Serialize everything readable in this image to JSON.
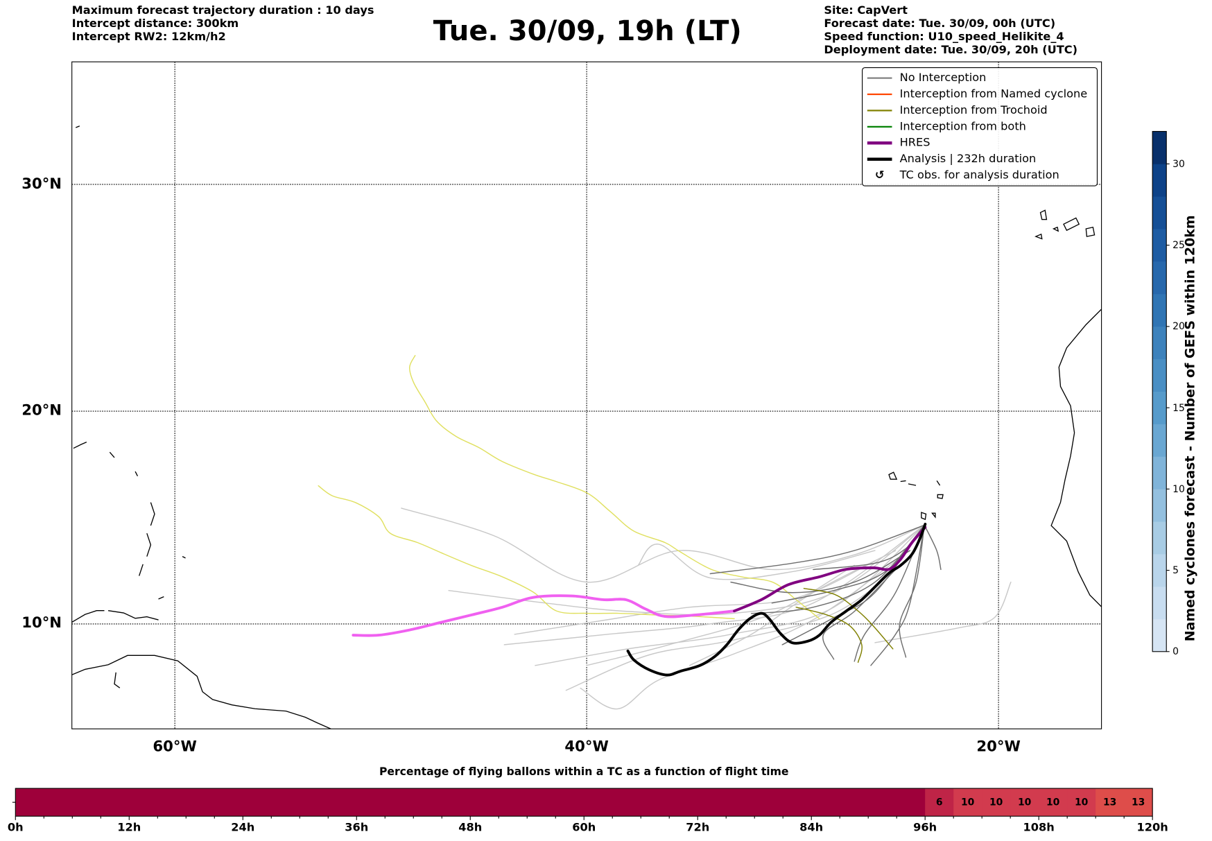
{
  "header": {
    "left": [
      "Maximum forecast trajectory duration : 10 days",
      "Intercept distance: 300km",
      "Intercept RW2: 12km/h2"
    ],
    "title": "Tue. 30/09, 19h (LT)",
    "right": [
      "Site: CapVert",
      "Forecast date: Tue. 30/09, 00h (UTC)",
      "Speed function: U10_speed_Helikite_4",
      "Deployment date: Tue. 30/09, 20h (UTC)"
    ]
  },
  "map": {
    "lon_range": [
      -65,
      -15
    ],
    "lat_range": [
      5,
      35
    ],
    "lon_ticks": [
      {
        "value": -60,
        "label": "60°W"
      },
      {
        "value": -40,
        "label": "40°W"
      },
      {
        "value": -20,
        "label": "20°W"
      }
    ],
    "lat_ticks": [
      {
        "value": 10,
        "label": "10°N"
      },
      {
        "value": 20,
        "label": "20°N"
      },
      {
        "value": 30,
        "label": "30°N"
      }
    ]
  },
  "legend": [
    {
      "label": "No Interception",
      "color": "#808080",
      "kind": "thin"
    },
    {
      "label": "Interception from Named cyclone",
      "color": "#ff4500",
      "kind": "thin"
    },
    {
      "label": "Interception from Trochoid",
      "color": "#808000",
      "kind": "thin"
    },
    {
      "label": "Interception from both",
      "color": "#008000",
      "kind": "thin"
    },
    {
      "label": "HRES",
      "color": "#800080",
      "kind": "thick"
    },
    {
      "label": "Analysis | 232h duration",
      "color": "#000000",
      "kind": "thick"
    },
    {
      "label": "TC obs. for analysis duration",
      "color": "#000000",
      "kind": "marker",
      "symbol": "↺"
    }
  ],
  "colors": {
    "light_gray": "#c8c8c8",
    "dark_gray": "#6e6e6e",
    "yellow": "#e0e060",
    "olive": "#808000",
    "hres": "#800080",
    "hres_pink": "#f060f0",
    "analysis": "#000000"
  },
  "chart_data": {
    "type": "line",
    "trajectories": {
      "analysis": [
        [
          -38.0,
          8.7
        ],
        [
          -37.7,
          8.26
        ],
        [
          -36.96,
          7.79
        ],
        [
          -36.1,
          7.54
        ],
        [
          -35.46,
          7.72
        ],
        [
          -34.5,
          8.0
        ],
        [
          -33.77,
          8.44
        ],
        [
          -33.2,
          8.99
        ],
        [
          -32.64,
          9.71
        ],
        [
          -32.08,
          10.25
        ],
        [
          -31.52,
          10.51
        ],
        [
          -31.14,
          10.25
        ],
        [
          -30.58,
          9.53
        ],
        [
          -30.0,
          9.09
        ],
        [
          -29.26,
          9.17
        ],
        [
          -28.7,
          9.46
        ],
        [
          -28.14,
          10.07
        ],
        [
          -27.39,
          10.62
        ],
        [
          -26.64,
          11.16
        ],
        [
          -25.89,
          11.88
        ],
        [
          -25.32,
          12.43
        ],
        [
          -24.76,
          12.79
        ],
        [
          -24.2,
          13.33
        ],
        [
          -23.82,
          14.06
        ],
        [
          -23.56,
          14.75
        ]
      ],
      "hres": [
        [
          -32.83,
          10.62
        ],
        [
          -31.52,
          11.16
        ],
        [
          -30.2,
          11.88
        ],
        [
          -28.7,
          12.25
        ],
        [
          -27.39,
          12.61
        ],
        [
          -26.07,
          12.68
        ],
        [
          -25.32,
          12.61
        ],
        [
          -24.76,
          13.08
        ],
        [
          -24.2,
          13.88
        ],
        [
          -23.56,
          14.6
        ]
      ],
      "hres_extension": [
        [
          -51.34,
          9.46
        ],
        [
          -50.1,
          9.46
        ],
        [
          -48.6,
          9.71
        ],
        [
          -47.1,
          10.07
        ],
        [
          -45.6,
          10.43
        ],
        [
          -44.1,
          10.8
        ],
        [
          -42.6,
          11.27
        ],
        [
          -40.71,
          11.34
        ],
        [
          -39.2,
          11.16
        ],
        [
          -38.09,
          11.16
        ],
        [
          -37.15,
          10.72
        ],
        [
          -36.2,
          10.36
        ],
        [
          -34.7,
          10.43
        ],
        [
          -32.83,
          10.62
        ]
      ],
      "yellow": [
        [
          [
            -48.33,
            22.53
          ],
          [
            -48.6,
            22.0
          ],
          [
            -48.4,
            21.3
          ],
          [
            -47.85,
            20.42
          ],
          [
            -47.28,
            19.54
          ],
          [
            -46.34,
            18.84
          ],
          [
            -45.22,
            18.32
          ],
          [
            -44.1,
            17.68
          ],
          [
            -42.59,
            17.09
          ],
          [
            -41.46,
            16.74
          ],
          [
            -39.96,
            16.2
          ],
          [
            -38.84,
            15.33
          ],
          [
            -37.71,
            14.42
          ],
          [
            -36.2,
            13.88
          ],
          [
            -35.46,
            13.44
          ],
          [
            -33.96,
            12.61
          ],
          [
            -32.46,
            12.25
          ],
          [
            -30.95,
            11.99
          ],
          [
            -29.83,
            11.16
          ],
          [
            -28.7,
            10.25
          ]
        ],
        [
          [
            -53.03,
            16.55
          ],
          [
            -52.35,
            16.08
          ],
          [
            -51.22,
            15.76
          ],
          [
            -50.1,
            15.1
          ],
          [
            -49.53,
            14.31
          ],
          [
            -48.22,
            13.88
          ],
          [
            -46.91,
            13.33
          ],
          [
            -45.59,
            12.79
          ],
          [
            -44.09,
            12.25
          ],
          [
            -42.59,
            11.52
          ],
          [
            -41.46,
            10.62
          ],
          [
            -39.96,
            10.51
          ],
          [
            -38.46,
            10.51
          ],
          [
            -36.58,
            10.43
          ],
          [
            -34.7,
            10.36
          ],
          [
            -32.83,
            10.25
          ]
        ]
      ],
      "olive": [
        [
          [
            -29.45,
            11.7
          ],
          [
            -27.95,
            11.41
          ],
          [
            -26.82,
            10.62
          ],
          [
            -26.07,
            9.89
          ],
          [
            -25.13,
            8.8
          ]
        ],
        [
          [
            -29.83,
            10.8
          ],
          [
            -28.33,
            10.43
          ],
          [
            -27.2,
            9.89
          ],
          [
            -26.64,
            8.99
          ],
          [
            -26.82,
            8.15
          ]
        ]
      ],
      "light_gray": [
        [
          [
            -49,
            15.5
          ],
          [
            -44.5,
            14.2
          ],
          [
            -40,
            12.0
          ],
          [
            -35.5,
            13.5
          ],
          [
            -31,
            12.6
          ],
          [
            -27,
            13.3
          ],
          [
            -23.6,
            14.7
          ]
        ],
        [
          [
            -46.7,
            11.6
          ],
          [
            -42,
            11.0
          ],
          [
            -38,
            10.6
          ],
          [
            -33,
            10.5
          ],
          [
            -28,
            11.5
          ],
          [
            -23.6,
            14.7
          ]
        ],
        [
          [
            -44,
            9.0
          ],
          [
            -39,
            9.5
          ],
          [
            -34,
            10.0
          ],
          [
            -29,
            11.0
          ],
          [
            -23.6,
            14.7
          ]
        ],
        [
          [
            -42.5,
            8.0
          ],
          [
            -38,
            8.8
          ],
          [
            -33,
            9.5
          ],
          [
            -28,
            10.8
          ],
          [
            -23.6,
            14.7
          ]
        ],
        [
          [
            -41,
            6.8
          ],
          [
            -37,
            8.5
          ],
          [
            -33,
            9.2
          ],
          [
            -28,
            10.5
          ],
          [
            -24.5,
            13
          ]
        ],
        [
          [
            -40.3,
            6.9
          ],
          [
            -38.5,
            5.9
          ],
          [
            -36.5,
            7.3
          ],
          [
            -33,
            8.5
          ],
          [
            -29,
            10.2
          ],
          [
            -25,
            13
          ]
        ],
        [
          [
            -37.5,
            12.8
          ],
          [
            -36.5,
            13.8
          ],
          [
            -34,
            12.2
          ],
          [
            -30,
            12.5
          ],
          [
            -26,
            13.5
          ]
        ],
        [
          [
            -35,
            8.0
          ],
          [
            -32,
            9.5
          ],
          [
            -29,
            11.5
          ],
          [
            -25,
            13.5
          ]
        ],
        [
          [
            -40,
            8.0
          ],
          [
            -36,
            9.0
          ],
          [
            -31,
            10.5
          ],
          [
            -27,
            12.8
          ]
        ],
        [
          [
            -19.4,
            12.0
          ],
          [
            -20.2,
            10.3
          ],
          [
            -22,
            9.8
          ],
          [
            -26,
            9.1
          ]
        ],
        [
          [
            -43.5,
            9.5
          ],
          [
            -39,
            10.2
          ],
          [
            -35,
            10.8
          ],
          [
            -30,
            11.2
          ],
          [
            -26,
            13
          ]
        ]
      ],
      "dark_gray": [
        [
          [
            -34,
            12.4
          ],
          [
            -30,
            12.9
          ],
          [
            -27,
            13.5
          ],
          [
            -23.6,
            14.7
          ]
        ],
        [
          [
            -31,
            11.0
          ],
          [
            -28,
            11.6
          ],
          [
            -25.5,
            12.5
          ],
          [
            -23.6,
            14.7
          ]
        ],
        [
          [
            -30.5,
            9.0
          ],
          [
            -28,
            10.3
          ],
          [
            -26,
            11.5
          ],
          [
            -23.6,
            14.7
          ]
        ],
        [
          [
            -27,
            8.2
          ],
          [
            -26.5,
            9.5
          ],
          [
            -25,
            11.5
          ],
          [
            -23.6,
            14.7
          ]
        ],
        [
          [
            -24.5,
            8.4
          ],
          [
            -24.8,
            10
          ],
          [
            -24,
            12
          ],
          [
            -23.6,
            14.7
          ]
        ],
        [
          [
            -22.8,
            12.6
          ],
          [
            -23.0,
            13.5
          ],
          [
            -23.6,
            14.7
          ]
        ],
        [
          [
            -29,
            12.6
          ],
          [
            -26,
            12.9
          ],
          [
            -24.5,
            13.6
          ],
          [
            -23.6,
            14.7
          ]
        ],
        [
          [
            -32,
            10.5
          ],
          [
            -29,
            10.8
          ],
          [
            -26,
            12
          ],
          [
            -23.6,
            14.7
          ]
        ],
        [
          [
            -33,
            12.0
          ],
          [
            -30,
            11.5
          ],
          [
            -27,
            12.0
          ],
          [
            -24.3,
            13.5
          ]
        ],
        [
          [
            -26.2,
            8.0
          ],
          [
            -25,
            9.5
          ],
          [
            -24.3,
            11
          ],
          [
            -23.6,
            14.7
          ]
        ],
        [
          [
            -28,
            8.3
          ],
          [
            -28.5,
            9.5
          ],
          [
            -27,
            10.6
          ],
          [
            -25,
            12.6
          ]
        ]
      ]
    }
  },
  "colorbar": {
    "label": "Named cyclones forecast - Number of GEFS within 120km",
    "range": [
      0,
      32
    ],
    "step": 2,
    "ticks": [
      "0",
      "5",
      "10",
      "15",
      "20",
      "25",
      "30"
    ]
  },
  "time_bar": {
    "title": "Percentage of flying ballons within a TC as a function of flight time",
    "step_hours": 3,
    "max_hours": 120,
    "values": [
      0,
      0,
      0,
      0,
      0,
      0,
      0,
      0,
      0,
      0,
      0,
      0,
      0,
      0,
      0,
      0,
      0,
      0,
      0,
      0,
      0,
      0,
      0,
      0,
      0,
      0,
      0,
      0,
      0,
      0,
      0,
      0,
      6,
      10,
      10,
      10,
      10,
      10,
      13,
      13
    ],
    "tick_labels": [
      "0h",
      "12h",
      "24h",
      "36h",
      "48h",
      "60h",
      "72h",
      "84h",
      "96h",
      "108h",
      "120h"
    ]
  }
}
